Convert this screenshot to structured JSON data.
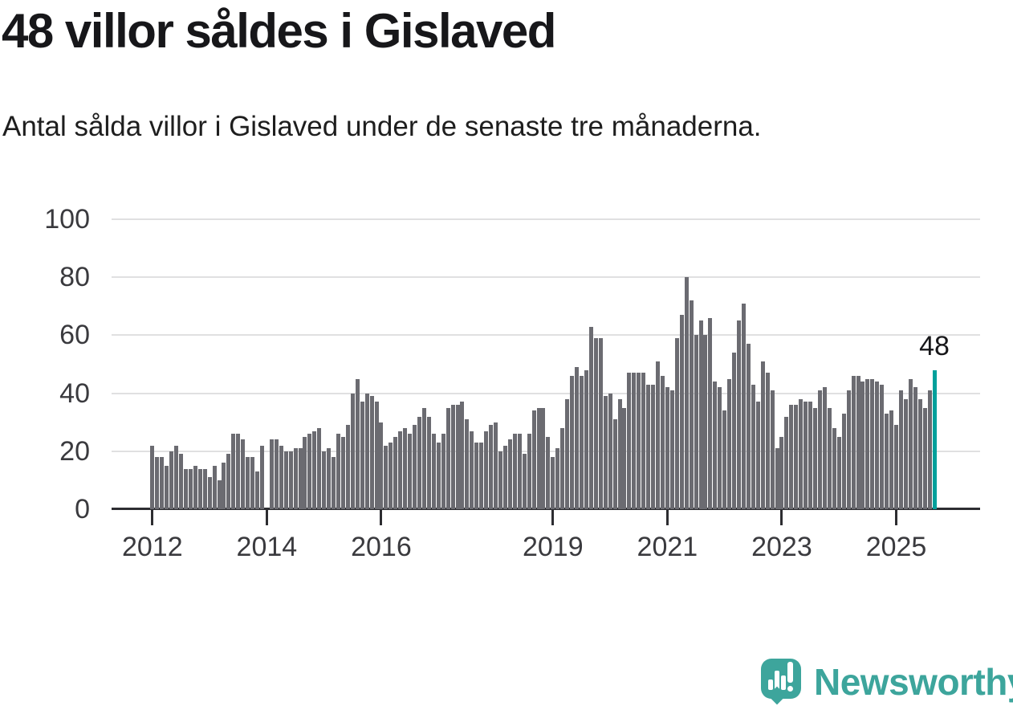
{
  "chart_data": {
    "type": "bar",
    "title": "48 villor såldes i Gislaved",
    "subtitle": "Antal sålda villor i Gislaved under de senaste tre månaderna.",
    "frequency": "monthly",
    "x_start": {
      "year": 2012,
      "month": 1
    },
    "values": [
      22,
      18,
      18,
      15,
      20,
      22,
      19,
      14,
      14,
      15,
      14,
      14,
      11,
      15,
      10,
      16,
      19,
      26,
      26,
      24,
      18,
      18,
      13,
      22,
      null,
      24,
      24,
      22,
      20,
      20,
      21,
      21,
      25,
      26,
      27,
      28,
      20,
      21,
      18,
      26,
      25,
      29,
      40,
      45,
      37,
      40,
      39,
      37,
      30,
      22,
      23,
      25,
      27,
      28,
      26,
      29,
      32,
      35,
      32,
      26,
      23,
      26,
      35,
      36,
      36,
      37,
      31,
      27,
      23,
      23,
      27,
      29,
      30,
      20,
      22,
      24,
      26,
      26,
      19,
      26,
      34,
      35,
      35,
      25,
      18,
      21,
      28,
      38,
      46,
      49,
      46,
      48,
      63,
      59,
      59,
      39,
      40,
      31,
      38,
      35,
      47,
      47,
      47,
      47,
      43,
      43,
      51,
      46,
      42,
      41,
      59,
      67,
      80,
      72,
      60,
      65,
      60,
      66,
      44,
      42,
      34,
      45,
      54,
      65,
      71,
      57,
      43,
      37,
      51,
      47,
      41,
      21,
      25,
      32,
      36,
      36,
      38,
      37,
      37,
      35,
      41,
      42,
      35,
      28,
      25,
      33,
      41,
      46,
      46,
      44,
      45,
      45,
      44,
      43,
      33,
      34,
      29,
      41,
      38,
      45,
      42,
      38,
      35,
      41,
      48
    ],
    "ylim": [
      0,
      100
    ],
    "y_ticks": [
      0,
      20,
      40,
      60,
      80,
      100
    ],
    "x_tick_years": [
      2012,
      2014,
      2016,
      2019,
      2021,
      2023,
      2025
    ],
    "grid": true,
    "legend_position": "none",
    "highlight": {
      "index": 164,
      "value": 48,
      "label": "48"
    }
  },
  "colors": {
    "bar": "#6b6b71",
    "highlight": "#00a09b",
    "grid": "#e0e0e1",
    "axis": "#2d2d31",
    "axis_text": "#3a3a3e",
    "title_text": "#17171a",
    "logo_teal": "#3da59c"
  },
  "logo": {
    "text": "Newsworthy"
  }
}
